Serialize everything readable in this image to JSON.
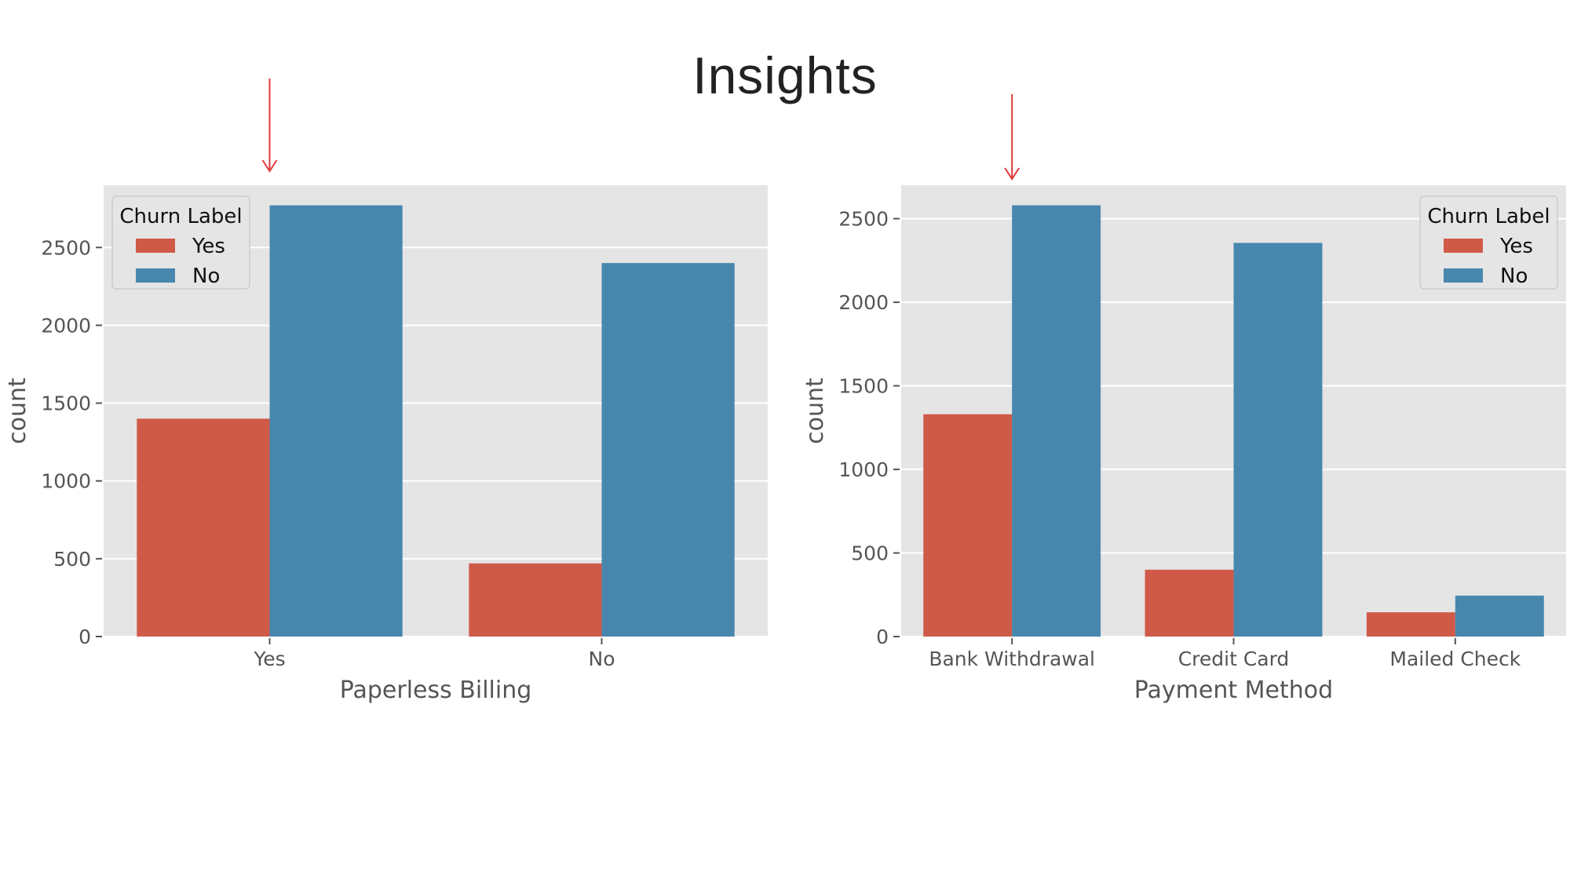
{
  "slide": {
    "title": "Insights"
  },
  "colors": {
    "yes": "#d05a48",
    "no": "#4787ae",
    "plot_bg": "#e5e5e5",
    "grid": "#ffffff",
    "annotation_arrow": "#e03a3a"
  },
  "chart_data": [
    {
      "type": "bar",
      "categories": [
        "Yes",
        "No"
      ],
      "series": [
        {
          "name": "Yes",
          "values": [
            1400,
            470
          ]
        },
        {
          "name": "No",
          "values": [
            2771,
            2400
          ]
        }
      ],
      "title": "",
      "xlabel": "Paperless Billing",
      "ylabel": "count",
      "ylim": [
        0,
        2900
      ],
      "yticks": [
        0,
        500,
        1000,
        1500,
        2000,
        2500
      ],
      "grid": true,
      "legend": {
        "title": "Churn Label",
        "placement": "top-left"
      },
      "annotation": {
        "type": "arrow",
        "target_category": "Yes"
      }
    },
    {
      "type": "bar",
      "categories": [
        "Bank Withdrawal",
        "Credit Card",
        "Mailed Check"
      ],
      "series": [
        {
          "name": "Yes",
          "values": [
            1330,
            400,
            145
          ]
        },
        {
          "name": "No",
          "values": [
            2580,
            2355,
            245
          ]
        }
      ],
      "title": "",
      "xlabel": "Payment Method",
      "ylabel": "count",
      "ylim": [
        0,
        2700
      ],
      "yticks": [
        0,
        500,
        1000,
        1500,
        2000,
        2500
      ],
      "grid": true,
      "legend": {
        "title": "Churn Label",
        "placement": "top-right"
      },
      "annotation": {
        "type": "arrow",
        "target_category": "Bank Withdrawal"
      }
    }
  ]
}
